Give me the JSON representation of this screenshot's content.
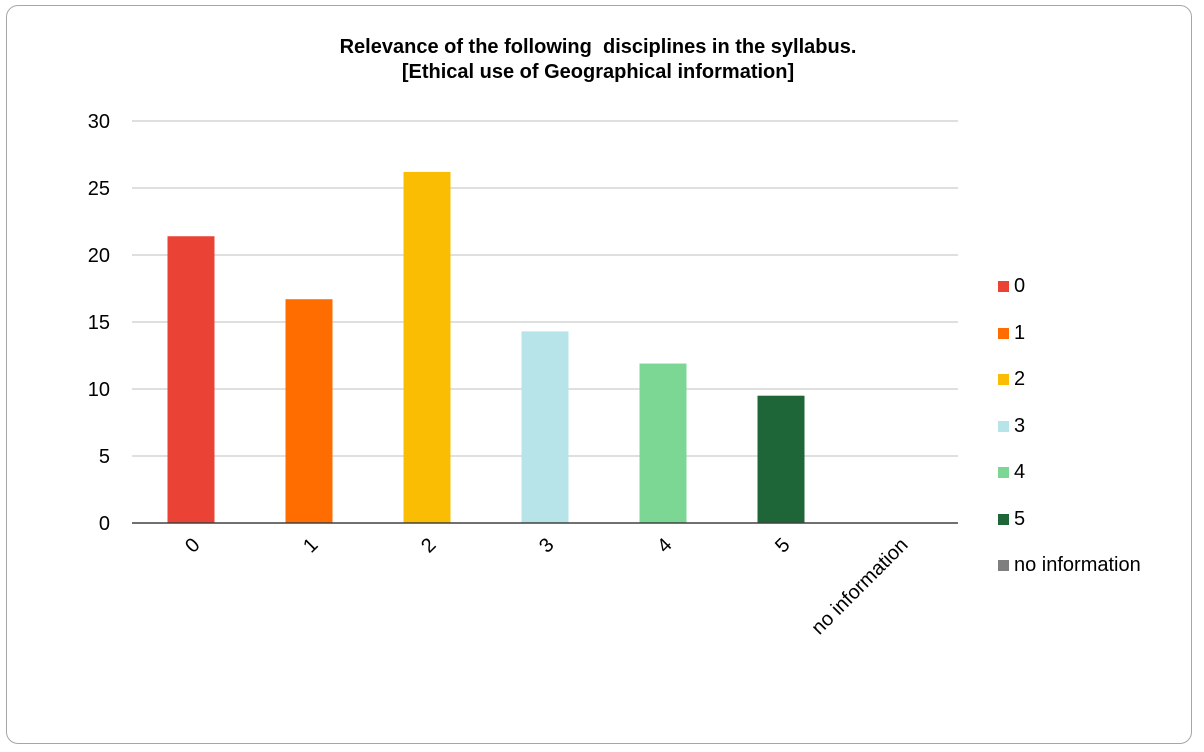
{
  "chart_data": {
    "type": "bar",
    "title_lines": [
      "Relevance of the following  disciplines in the syllabus.",
      "[Ethical use of Geographical information]"
    ],
    "xlabel": "",
    "ylabel": "",
    "categories": [
      "0",
      "1",
      "2",
      "3",
      "4",
      "5",
      "no information"
    ],
    "values": [
      21.4,
      16.7,
      26.2,
      14.3,
      11.9,
      9.5,
      0
    ],
    "colors": [
      "#ea4335",
      "#ff6d01",
      "#fbbc04",
      "#b6e4e8",
      "#7dd794",
      "#1e6537",
      "#7f7f7f"
    ],
    "ylim": [
      0,
      30
    ],
    "yticks": [
      0,
      5,
      10,
      15,
      20,
      25,
      30
    ],
    "grid": true,
    "legend_position": "right",
    "legend": [
      "0",
      "1",
      "2",
      "3",
      "4",
      "5",
      "no information"
    ]
  }
}
